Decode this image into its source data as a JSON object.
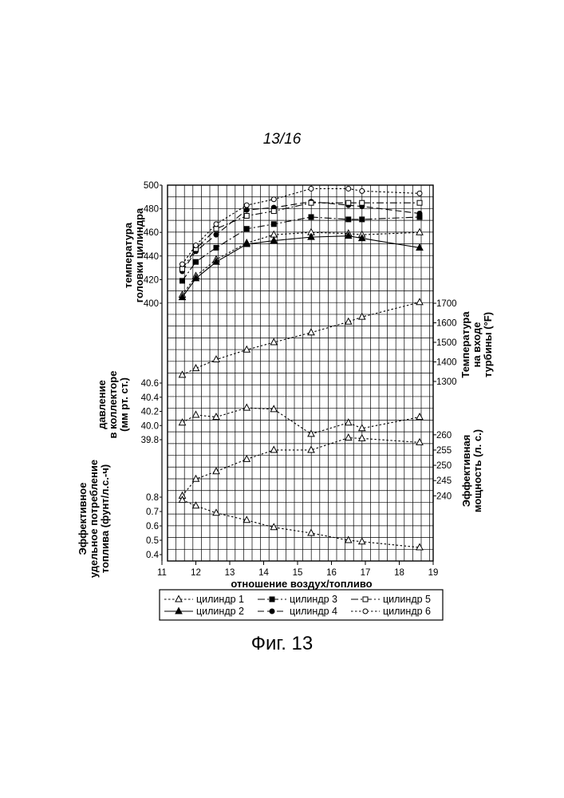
{
  "page_number": "13/16",
  "figure_caption": "Фиг. 13",
  "chart_data": {
    "type": "line",
    "x_axis": {
      "label": "отношение воздух/топливо",
      "range": [
        11,
        19
      ],
      "ticks": [
        11,
        12,
        13,
        14,
        15,
        16,
        17,
        18,
        19
      ]
    },
    "panels": [
      {
        "id": "cht",
        "ylabel_lines": [
          "температура",
          "головки цилиндра"
        ],
        "axis_side": "left",
        "range": [
          400,
          500
        ],
        "ticks": [
          400,
          420,
          440,
          460,
          480,
          500
        ],
        "series": [
          {
            "name": "цилиндр 1",
            "line": "dotted",
            "marker": "triangle-open",
            "x": [
              11.6,
              12.0,
              12.6,
              13.5,
              14.3,
              15.4,
              16.5,
              16.9,
              18.6
            ],
            "y": [
              407,
              423,
              437,
              451,
              458,
              460,
              459,
              458,
              460
            ]
          },
          {
            "name": "цилиндр 2",
            "line": "solid",
            "marker": "triangle-filled",
            "x": [
              11.6,
              12.0,
              12.6,
              13.5,
              14.3,
              15.4,
              16.5,
              16.9,
              18.6
            ],
            "y": [
              405,
              421,
              435,
              450,
              453,
              456,
              457,
              455,
              447
            ]
          },
          {
            "name": "цилиндр 3",
            "line": "dash-dot",
            "marker": "square-filled",
            "x": [
              11.6,
              12.0,
              12.6,
              13.5,
              14.3,
              15.4,
              16.5,
              16.9,
              18.6
            ],
            "y": [
              419,
              435,
              447,
              463,
              467,
              473,
              471,
              471,
              473
            ]
          },
          {
            "name": "цилиндр 4",
            "line": "dashed",
            "marker": "circle-filled",
            "x": [
              11.6,
              12.0,
              12.6,
              13.5,
              14.3,
              15.4,
              16.5,
              16.9,
              18.6
            ],
            "y": [
              427,
              444,
              458,
              479,
              481,
              486,
              483,
              482,
              476
            ]
          },
          {
            "name": "цилиндр 5",
            "line": "dash-dot",
            "marker": "square-open",
            "x": [
              11.6,
              12.0,
              12.6,
              13.5,
              14.3,
              15.4,
              16.5,
              16.9,
              18.6
            ],
            "y": [
              429,
              446,
              463,
              474,
              478,
              485,
              485,
              485,
              485
            ]
          },
          {
            "name": "цилиндр 6",
            "line": "dotted",
            "marker": "circle-open",
            "x": [
              11.6,
              12.0,
              12.6,
              13.5,
              14.3,
              15.4,
              16.5,
              16.9,
              18.6
            ],
            "y": [
              433,
              449,
              467,
              483,
              488,
              497,
              497,
              495,
              493
            ]
          }
        ]
      },
      {
        "id": "tit",
        "ylabel_lines": [
          "Температура",
          "на входе",
          "турбины (°F)"
        ],
        "axis_side": "right",
        "range": [
          1300,
          1700
        ],
        "ticks": [
          1300,
          1400,
          1500,
          1600,
          1700
        ],
        "series": [
          {
            "name": "цилиндр 1",
            "line": "dotted",
            "marker": "triangle-open",
            "x": [
              11.6,
              12.0,
              12.6,
              13.5,
              14.3,
              15.4,
              16.5,
              16.9,
              18.6
            ],
            "y": [
              1333,
              1367,
              1412,
              1462,
              1500,
              1550,
              1605,
              1630,
              1705
            ]
          }
        ]
      },
      {
        "id": "map",
        "ylabel_lines": [
          "давление",
          "в коллекторе",
          "(мм рт. ст.)"
        ],
        "axis_side": "left",
        "range": [
          39.8,
          40.6
        ],
        "ticks": [
          39.8,
          40.0,
          40.2,
          40.4,
          40.6
        ],
        "series": [
          {
            "name": "цилиндр 1",
            "line": "dotted",
            "marker": "triangle-open",
            "x": [
              11.6,
              12.0,
              12.6,
              13.5,
              14.3,
              15.4,
              16.5,
              16.9,
              18.6
            ],
            "y": [
              40.04,
              40.15,
              40.12,
              40.25,
              40.23,
              39.88,
              40.04,
              39.96,
              40.12
            ]
          }
        ]
      },
      {
        "id": "bhp",
        "ylabel_lines": [
          "Эффективная",
          "мощность (л. с.)"
        ],
        "axis_side": "right",
        "range": [
          238,
          261
        ],
        "ticks": [
          240,
          245,
          250,
          255,
          260
        ],
        "series": [
          {
            "name": "цилиндр 1",
            "line": "dotted",
            "marker": "triangle-open",
            "x": [
              11.6,
              12.0,
              12.6,
              13.5,
              14.3,
              15.4,
              16.5,
              16.9,
              18.6
            ],
            "y": [
              240,
              245.5,
              248,
              252,
              255,
              255,
              259,
              258.8,
              257.5
            ]
          }
        ]
      },
      {
        "id": "bsfc",
        "ylabel_lines": [
          "Эффективное",
          "удельное потребление",
          "топлива (фунт/л.с.-ч)"
        ],
        "axis_side": "left",
        "range": [
          0.4,
          0.8
        ],
        "ticks": [
          0.4,
          0.5,
          0.6,
          0.7,
          0.8
        ],
        "series": [
          {
            "name": "цилиндр 1",
            "line": "dotted",
            "marker": "triangle-open",
            "x": [
              11.6,
              12.0,
              12.6,
              13.5,
              14.3,
              15.4,
              16.5,
              16.9,
              18.6
            ],
            "y": [
              0.78,
              0.74,
              0.69,
              0.64,
              0.59,
              0.55,
              0.5,
              0.49,
              0.45
            ]
          }
        ]
      }
    ],
    "grid": true,
    "legend": {
      "placement": "bottom",
      "entries": [
        {
          "name": "цилиндр 1",
          "line": "dotted",
          "marker": "triangle-open"
        },
        {
          "name": "цилиндр 3",
          "line": "dash-dot",
          "marker": "square-filled"
        },
        {
          "name": "цилиндр 5",
          "line": "dash-dot",
          "marker": "square-open"
        },
        {
          "name": "цилиндр 2",
          "line": "solid",
          "marker": "triangle-filled"
        },
        {
          "name": "цилиндр 4",
          "line": "dashed",
          "marker": "circle-filled"
        },
        {
          "name": "цилиндр 6",
          "line": "dotted",
          "marker": "circle-open"
        }
      ]
    }
  }
}
